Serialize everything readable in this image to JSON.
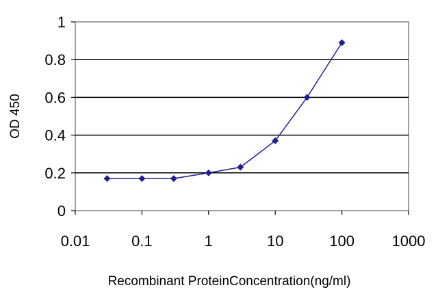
{
  "chart_data": {
    "type": "line",
    "x_scale": "log",
    "xlabel": "Recombinant ProteinConcentration(ng/ml)",
    "ylabel": "OD 450",
    "xlim": [
      0.01,
      1000
    ],
    "ylim": [
      0,
      1
    ],
    "x_ticks": [
      0.01,
      0.1,
      1,
      10,
      100,
      1000
    ],
    "x_tick_labels": [
      "0.01",
      "0.1",
      "1",
      "10",
      "100",
      "1000"
    ],
    "y_ticks": [
      0,
      0.2,
      0.4,
      0.6,
      0.8,
      1
    ],
    "y_tick_labels": [
      "0",
      "0.2",
      "0.4",
      "0.6",
      "0.8",
      "1"
    ],
    "grid": "horizontal",
    "series": [
      {
        "color": "#1f1f8f",
        "marker": "diamond",
        "x": [
          0.03,
          0.1,
          0.3,
          1,
          3,
          10,
          30,
          100
        ],
        "y": [
          0.17,
          0.17,
          0.17,
          0.2,
          0.23,
          0.37,
          0.6,
          0.89
        ]
      }
    ]
  }
}
